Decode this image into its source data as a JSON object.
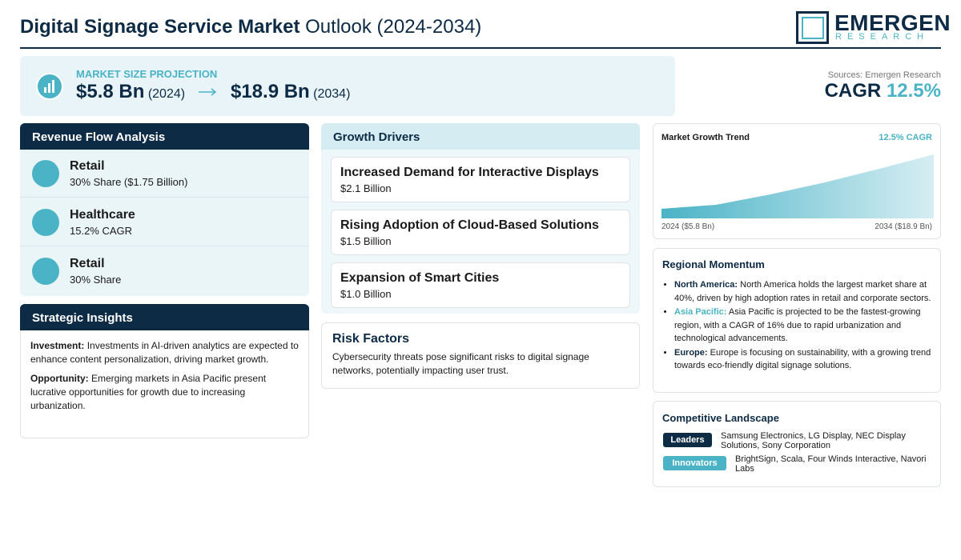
{
  "header": {
    "title_bold": "Digital Signage Service Market",
    "title_rest": "Outlook (2024-2034)"
  },
  "logo": {
    "name": "EMERGEN",
    "tagline": "RESEARCH"
  },
  "projection": {
    "label": "MARKET SIZE PROJECTION",
    "start_value": "$5.8 Bn",
    "start_year": "(2024)",
    "end_value": "$18.9 Bn",
    "end_year": "(2034)"
  },
  "sources": "Sources: Emergen Research",
  "cagr": {
    "label": "CAGR",
    "value": "12.5%"
  },
  "revenue_flow": {
    "title": "Revenue Flow Analysis",
    "items": [
      {
        "name": "Retail",
        "detail": "30% Share ($1.75 Billion)"
      },
      {
        "name": "Healthcare",
        "detail": "15.2% CAGR"
      },
      {
        "name": "Retail",
        "detail": "30% Share"
      }
    ]
  },
  "strategic_insights": {
    "title": "Strategic Insights",
    "items": [
      {
        "label": "Investment:",
        "text": "Investments in AI-driven analytics are expected to enhance content personalization, driving market growth."
      },
      {
        "label": "Opportunity:",
        "text": "Emerging markets in Asia Pacific present lucrative opportunities for growth due to increasing urbanization."
      }
    ]
  },
  "growth_drivers": {
    "title": "Growth Drivers",
    "items": [
      {
        "name": "Increased Demand for Interactive Displays",
        "value": "$2.1 Billion"
      },
      {
        "name": "Rising Adoption of Cloud-Based Solutions",
        "value": "$1.5 Billion"
      },
      {
        "name": "Expansion of Smart Cities",
        "value": "$1.0 Billion"
      }
    ]
  },
  "risk_factors": {
    "title": "Risk Factors",
    "text": "Cybersecurity threats pose significant risks to digital signage networks, potentially impacting user trust."
  },
  "trend": {
    "title": "Market Growth Trend",
    "cagr": "12.5% CAGR",
    "start_label": "2024 ($5.8 Bn)",
    "end_label": "2034 ($18.9 Bn)"
  },
  "regional": {
    "title": "Regional Momentum",
    "items": [
      {
        "region": "North America:",
        "text": "North America holds the largest market share at 40%, driven by high adoption rates in retail and corporate sectors."
      },
      {
        "region": "Asia Pacific:",
        "text": "Asia Pacific is projected to be the fastest-growing region, with a CAGR of 16% due to rapid urbanization and technological advancements."
      },
      {
        "region": "Europe:",
        "text": "Europe is focusing on sustainability, with a growing trend towards eco-friendly digital signage solutions."
      }
    ]
  },
  "competitive": {
    "title": "Competitive Landscape",
    "groups": [
      {
        "label": "Leaders",
        "companies": "Samsung Electronics, LG Display, NEC Display Solutions, Sony Corporation"
      },
      {
        "label": "Innovators",
        "companies": "BrightSign, Scala, Four Winds Interactive, Navori Labs"
      }
    ]
  }
}
